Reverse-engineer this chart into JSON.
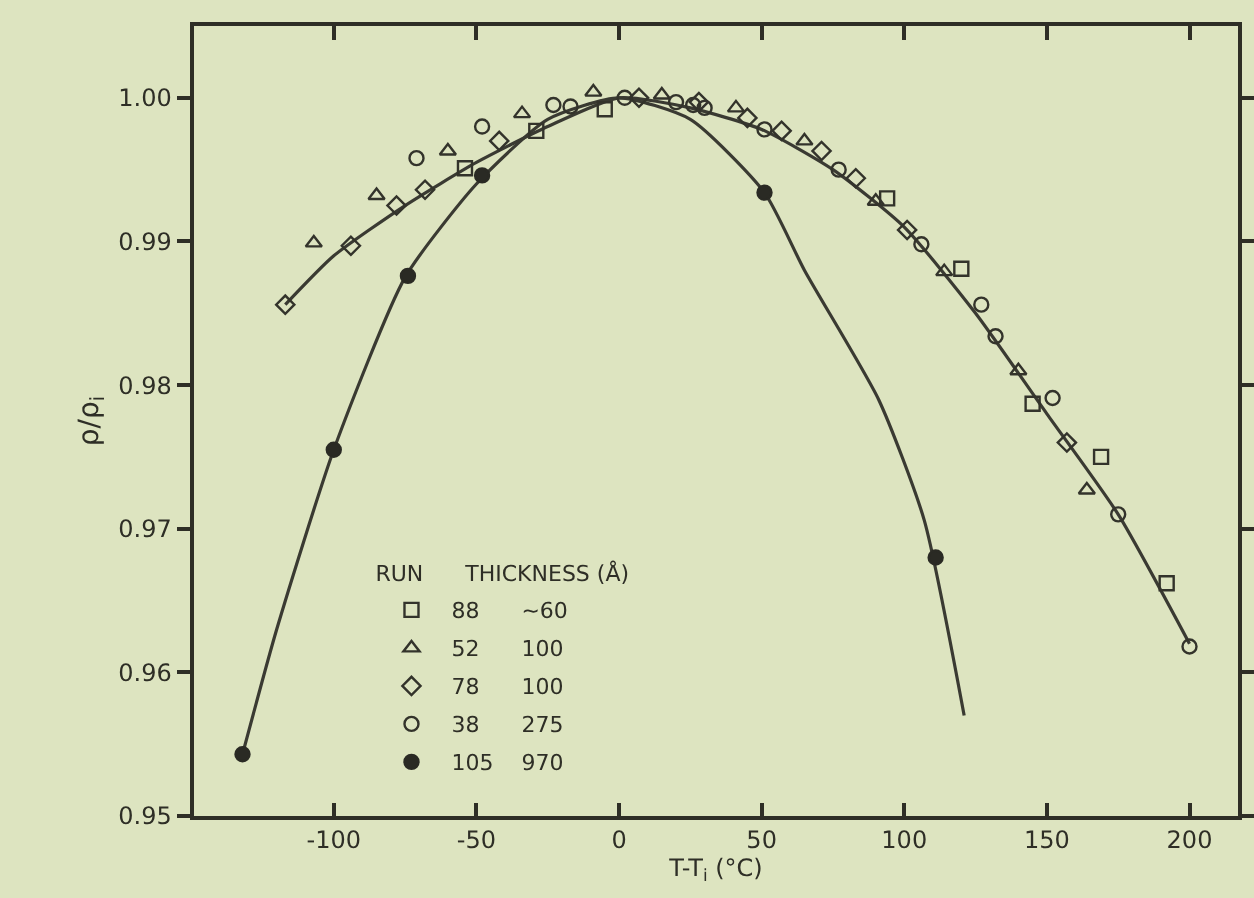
{
  "chart_data": {
    "type": "scatter",
    "xlabel": "T-T$_{i}$ (°C)",
    "ylabel": "ρ/ρ$_{i}$",
    "legend_title": "RUN      THICKNESS (Å)",
    "legend": "bottom",
    "xlim": [
      -149,
      217
    ],
    "xticks": [
      -100,
      -50,
      0,
      50,
      100,
      150,
      200
    ],
    "ylim": [
      0.95,
      1.005
    ],
    "yticks": [
      0.95,
      0.96,
      0.97,
      0.98,
      0.99,
      {
        "value": 1,
        "label": "1.00"
      }
    ],
    "grid": false,
    "series": [
      {
        "name": "88      ~60",
        "color": "#33332b",
        "marker": "square-open",
        "x": [
          -54,
          -29,
          -5,
          94,
          120,
          145,
          169,
          192
        ],
        "values": [
          0.9951,
          0.9977,
          0.9992,
          0.993,
          0.9881,
          0.9787,
          0.975,
          0.9662
        ]
      },
      {
        "name": "52      100",
        "color": "#33332b",
        "marker": "triangle-open",
        "x": [
          -107,
          -85,
          -60,
          -34,
          -9,
          15,
          41,
          65,
          90,
          114,
          140,
          164
        ],
        "values": [
          0.9899,
          0.9932,
          0.9963,
          0.9989,
          1.0004,
          1.0002,
          0.9993,
          0.997,
          0.9928,
          0.9879,
          0.981,
          0.9727
        ]
      },
      {
        "name": "78      100",
        "color": "#33332b",
        "marker": "diamond-open",
        "x": [
          -117,
          -94,
          -78,
          -68,
          -42,
          7,
          28,
          45,
          57,
          71,
          83,
          101,
          157
        ],
        "values": [
          0.9856,
          0.9897,
          0.9925,
          0.9936,
          0.997,
          1.0,
          0.9997,
          0.9986,
          0.9977,
          0.9963,
          0.9944,
          0.9908,
          0.976
        ]
      },
      {
        "name": "38      275",
        "color": "#33332b",
        "marker": "circle-open",
        "x": [
          -71,
          -48,
          -23,
          -17,
          2,
          20,
          26,
          30,
          51,
          77,
          106,
          127,
          132,
          152,
          175,
          200
        ],
        "values": [
          0.9958,
          0.998,
          0.9995,
          0.9994,
          1.0,
          0.9997,
          0.9995,
          0.9993,
          0.9978,
          0.995,
          0.9898,
          0.9856,
          0.9834,
          0.9791,
          0.971,
          0.9618
        ]
      },
      {
        "name": "105    970",
        "color": "#2a2a24",
        "marker": "circle",
        "x": [
          -132,
          -100,
          -74,
          -48,
          51,
          111
        ],
        "values": [
          0.9543,
          0.9755,
          0.9876,
          0.9946,
          0.9934,
          0.968
        ]
      },
      {
        "type": "line",
        "color": "#3a3a32",
        "marker": "none",
        "x": [
          -117,
          -100,
          -75,
          -50,
          -25,
          0,
          25,
          50,
          75,
          100,
          125,
          150,
          175,
          200
        ],
        "values": [
          0.9856,
          0.989,
          0.9925,
          0.9955,
          0.998,
          1.0,
          0.9993,
          0.9978,
          0.995,
          0.991,
          0.985,
          0.978,
          0.971,
          0.962
        ]
      },
      {
        "type": "line",
        "color": "#3a3a32",
        "marker": "none",
        "x": [
          -132,
          -120,
          -100,
          -75,
          -50,
          -25,
          0,
          25,
          51,
          65,
          91,
          107,
          121
        ],
        "values": [
          0.9543,
          0.963,
          0.9755,
          0.9875,
          0.994,
          0.9985,
          1.0,
          0.9985,
          0.9934,
          0.988,
          0.979,
          0.9706,
          0.957
        ]
      }
    ]
  }
}
